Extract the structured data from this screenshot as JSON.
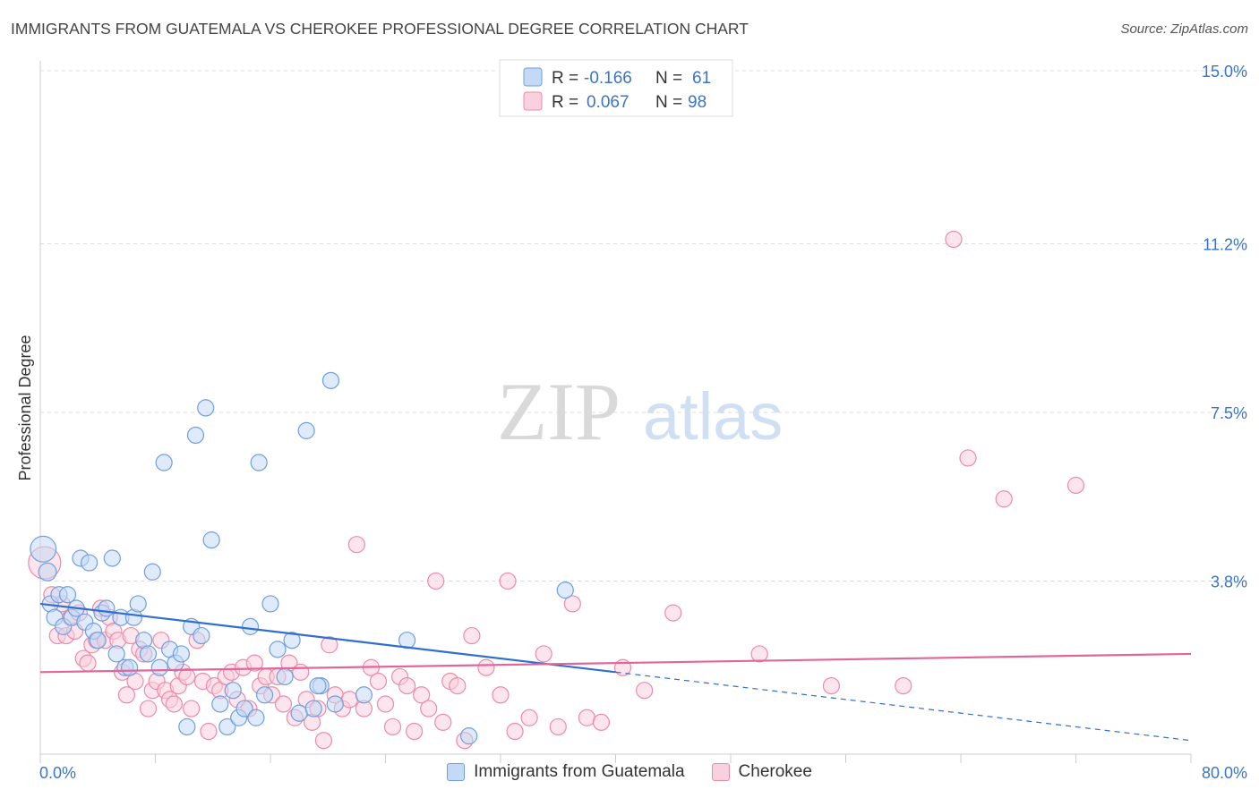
{
  "header": {
    "title": "IMMIGRANTS FROM GUATEMALA VS CHEROKEE PROFESSIONAL DEGREE CORRELATION CHART",
    "source": "Source: ZipAtlas.com"
  },
  "watermark": {
    "zip": "ZIP",
    "atlas": "atlas"
  },
  "colors": {
    "blue": "#6f9fde",
    "blue_fill": "#c4d9f5",
    "blue_line": "#2e6fcf",
    "pink": "#ee8aaa",
    "pink_fill": "#f9d0dd",
    "pink_line": "#e0679a",
    "tick_label": "#3a74c8"
  },
  "legend": {
    "rows": [
      {
        "r_label": "R = ",
        "r_value": "-0.166",
        "n_label": "N = ",
        "n_value": "61"
      },
      {
        "r_label": "R = ",
        "r_value": "0.067",
        "n_label": "N = ",
        "n_value": "98"
      }
    ]
  },
  "chart_data": {
    "type": "scatter",
    "ylabel": "Professional Degree",
    "xlim": [
      0,
      80
    ],
    "ylim": [
      0,
      15
    ],
    "x_tick_labels": [
      {
        "value": 0,
        "label": "0.0%"
      },
      {
        "value": 80,
        "label": "80.0%"
      }
    ],
    "y_tick_labels": [
      {
        "value": 3.8,
        "label": "3.8%"
      },
      {
        "value": 7.5,
        "label": "7.5%"
      },
      {
        "value": 11.2,
        "label": "11.2%"
      },
      {
        "value": 15.0,
        "label": "15.0%"
      }
    ],
    "grid": true,
    "legend_position": "top-center",
    "series": [
      {
        "name": "Immigrants from Guatemala",
        "color": "blue",
        "trend": {
          "x0": 0,
          "y0": 3.3,
          "x1": 40,
          "y1": 1.8,
          "dash_to_x": 80,
          "dash_to_y": 0.3
        },
        "points": [
          [
            0.2,
            4.5,
            1.6
          ],
          [
            0.5,
            4.0,
            1.1
          ],
          [
            0.7,
            3.3,
            1
          ],
          [
            1.0,
            3.0,
            1
          ],
          [
            1.3,
            3.5,
            1
          ],
          [
            1.6,
            2.8,
            1
          ],
          [
            1.9,
            3.5,
            1
          ],
          [
            2.2,
            3.0,
            1
          ],
          [
            2.5,
            3.2,
            1
          ],
          [
            2.8,
            4.3,
            1
          ],
          [
            3.1,
            2.9,
            1
          ],
          [
            3.4,
            4.2,
            1
          ],
          [
            3.7,
            2.7,
            1
          ],
          [
            4.0,
            2.5,
            1
          ],
          [
            4.3,
            3.1,
            1
          ],
          [
            4.6,
            3.2,
            1
          ],
          [
            5.0,
            4.3,
            1
          ],
          [
            5.3,
            2.2,
            1
          ],
          [
            5.6,
            3.0,
            1
          ],
          [
            5.9,
            1.9,
            1
          ],
          [
            6.2,
            1.9,
            1
          ],
          [
            6.5,
            3.0,
            1
          ],
          [
            6.8,
            3.3,
            1
          ],
          [
            7.2,
            2.5,
            1
          ],
          [
            7.5,
            2.2,
            1
          ],
          [
            7.8,
            4.0,
            1
          ],
          [
            8.3,
            1.9,
            1
          ],
          [
            8.6,
            6.4,
            1
          ],
          [
            9.0,
            2.3,
            1
          ],
          [
            9.4,
            2.0,
            1
          ],
          [
            9.8,
            2.2,
            1
          ],
          [
            10.2,
            0.6,
            1
          ],
          [
            10.5,
            2.8,
            1
          ],
          [
            10.8,
            7.0,
            1
          ],
          [
            11.2,
            2.6,
            1
          ],
          [
            11.5,
            7.6,
            1
          ],
          [
            11.9,
            4.7,
            1
          ],
          [
            12.5,
            1.1,
            1
          ],
          [
            13.0,
            0.6,
            1
          ],
          [
            13.4,
            1.4,
            1
          ],
          [
            13.8,
            0.8,
            1
          ],
          [
            14.2,
            1.0,
            1
          ],
          [
            14.6,
            2.8,
            1
          ],
          [
            15.0,
            0.8,
            1
          ],
          [
            15.2,
            6.4,
            1
          ],
          [
            15.6,
            1.3,
            1
          ],
          [
            16.0,
            3.3,
            1
          ],
          [
            16.5,
            2.3,
            1
          ],
          [
            17.0,
            1.7,
            1
          ],
          [
            17.5,
            2.5,
            1
          ],
          [
            18.0,
            0.9,
            1
          ],
          [
            18.5,
            7.1,
            1
          ],
          [
            19.0,
            1.0,
            1
          ],
          [
            19.5,
            1.5,
            1
          ],
          [
            20.2,
            8.2,
            1
          ],
          [
            20.5,
            1.1,
            1
          ],
          [
            22.5,
            1.3,
            1
          ],
          [
            25.5,
            2.5,
            1
          ],
          [
            29.8,
            0.4,
            1
          ],
          [
            36.5,
            3.6,
            1
          ],
          [
            19.3,
            1.5,
            1
          ]
        ]
      },
      {
        "name": "Cherokee",
        "color": "pink",
        "trend": {
          "x0": 0,
          "y0": 1.8,
          "x1": 80,
          "y1": 2.2
        },
        "points": [
          [
            0.3,
            4.2,
            2.0
          ],
          [
            0.8,
            3.5,
            1
          ],
          [
            1.2,
            2.6,
            1
          ],
          [
            1.5,
            3.3,
            1
          ],
          [
            1.8,
            2.6,
            1
          ],
          [
            2.1,
            3.0,
            1
          ],
          [
            2.4,
            2.7,
            1
          ],
          [
            2.7,
            3.1,
            1
          ],
          [
            3.0,
            2.1,
            1
          ],
          [
            3.3,
            2.0,
            1
          ],
          [
            3.6,
            2.4,
            1
          ],
          [
            3.9,
            2.5,
            1
          ],
          [
            4.2,
            3.2,
            1
          ],
          [
            4.5,
            2.5,
            1
          ],
          [
            4.8,
            3.0,
            1
          ],
          [
            5.1,
            2.7,
            1
          ],
          [
            5.4,
            2.5,
            1
          ],
          [
            5.7,
            1.8,
            1
          ],
          [
            6.0,
            1.3,
            1
          ],
          [
            6.3,
            2.6,
            1
          ],
          [
            6.6,
            1.6,
            1
          ],
          [
            6.9,
            2.3,
            1
          ],
          [
            7.2,
            2.2,
            1
          ],
          [
            7.5,
            1.0,
            1
          ],
          [
            7.8,
            1.4,
            1
          ],
          [
            8.1,
            1.6,
            1
          ],
          [
            8.4,
            2.5,
            1
          ],
          [
            8.7,
            1.4,
            1
          ],
          [
            9.0,
            1.2,
            1
          ],
          [
            9.3,
            1.1,
            1
          ],
          [
            9.6,
            1.5,
            1
          ],
          [
            9.9,
            1.8,
            1
          ],
          [
            10.2,
            1.7,
            1
          ],
          [
            10.5,
            1.0,
            1
          ],
          [
            10.9,
            2.5,
            1
          ],
          [
            11.3,
            1.6,
            1
          ],
          [
            11.7,
            0.5,
            1
          ],
          [
            12.1,
            1.5,
            1
          ],
          [
            12.5,
            1.4,
            1
          ],
          [
            12.9,
            1.7,
            1
          ],
          [
            13.3,
            1.8,
            1
          ],
          [
            13.7,
            1.2,
            1
          ],
          [
            14.1,
            1.9,
            1
          ],
          [
            14.5,
            1.0,
            1
          ],
          [
            14.9,
            2.0,
            1
          ],
          [
            15.3,
            1.5,
            1
          ],
          [
            15.7,
            1.7,
            1
          ],
          [
            16.1,
            1.3,
            1
          ],
          [
            16.5,
            1.7,
            1
          ],
          [
            16.9,
            1.1,
            1
          ],
          [
            17.3,
            2.0,
            1
          ],
          [
            17.7,
            0.8,
            1
          ],
          [
            18.1,
            1.8,
            1
          ],
          [
            18.5,
            1.2,
            1
          ],
          [
            18.9,
            0.7,
            1
          ],
          [
            19.3,
            1.0,
            1
          ],
          [
            19.7,
            0.3,
            1
          ],
          [
            20.1,
            2.4,
            1
          ],
          [
            20.5,
            1.3,
            1
          ],
          [
            21.0,
            1.0,
            1
          ],
          [
            21.5,
            1.2,
            1
          ],
          [
            22.0,
            4.6,
            1
          ],
          [
            22.5,
            1.0,
            1
          ],
          [
            23.0,
            1.9,
            1
          ],
          [
            23.5,
            1.6,
            1
          ],
          [
            24.0,
            1.1,
            1
          ],
          [
            24.5,
            0.6,
            1
          ],
          [
            25.0,
            1.7,
            1
          ],
          [
            25.5,
            1.5,
            1
          ],
          [
            26.0,
            0.5,
            1
          ],
          [
            26.5,
            1.3,
            1
          ],
          [
            27.0,
            1.0,
            1
          ],
          [
            27.5,
            3.8,
            1
          ],
          [
            28.0,
            0.7,
            1
          ],
          [
            28.5,
            1.6,
            1
          ],
          [
            29.0,
            1.5,
            1
          ],
          [
            29.5,
            0.3,
            1
          ],
          [
            30.0,
            2.6,
            1
          ],
          [
            31.0,
            1.9,
            1
          ],
          [
            32.0,
            1.3,
            1
          ],
          [
            32.5,
            3.8,
            1
          ],
          [
            33.0,
            0.5,
            1
          ],
          [
            34.0,
            0.8,
            1
          ],
          [
            35.0,
            2.2,
            1
          ],
          [
            36.0,
            0.6,
            1
          ],
          [
            37.0,
            3.3,
            1
          ],
          [
            38.0,
            0.8,
            1
          ],
          [
            39.0,
            0.7,
            1
          ],
          [
            40.5,
            1.9,
            1
          ],
          [
            42.0,
            1.4,
            1
          ],
          [
            44.0,
            3.1,
            1
          ],
          [
            50.0,
            2.2,
            1
          ],
          [
            55.0,
            1.5,
            1
          ],
          [
            60.0,
            1.5,
            1
          ],
          [
            63.5,
            11.3,
            1
          ],
          [
            64.5,
            6.5,
            1
          ],
          [
            67.0,
            5.6,
            1
          ],
          [
            72.0,
            5.9,
            1
          ]
        ]
      }
    ]
  }
}
